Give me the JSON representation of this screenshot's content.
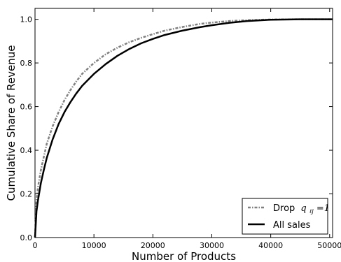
{
  "chart_data": {
    "type": "line",
    "xlabel": "Number of Products",
    "ylabel": "Cumulative Share of Revenue",
    "xlim": [
      0,
      50500
    ],
    "ylim": [
      0,
      1.05
    ],
    "xticks": [
      0,
      10000,
      20000,
      30000,
      40000,
      50000
    ],
    "xtick_labels": [
      "0",
      "10000",
      "20000",
      "30000",
      "40000",
      "50000"
    ],
    "yticks": [
      0.0,
      0.2,
      0.4,
      0.6,
      0.8,
      1.0
    ],
    "ytick_labels": [
      "0.0",
      "0.2",
      "0.4",
      "0.6",
      "0.8",
      "1.0"
    ],
    "grid": false,
    "legend_position": "lower-right",
    "series": [
      {
        "name": "Drop",
        "name_math": "q",
        "name_math_sub": "ℓj",
        "name_math_rest": "=1",
        "style": "dashdot",
        "color": "#808080",
        "x": [
          0,
          250,
          500,
          1000,
          1500,
          2000,
          3000,
          4000,
          5000,
          6000,
          7000,
          8000,
          10000,
          12000,
          14000,
          16000,
          18000,
          20000,
          22000,
          25000,
          28000,
          30000,
          33000,
          36000,
          40000,
          45000,
          50500
        ],
        "y": [
          0.0,
          0.17,
          0.23,
          0.31,
          0.37,
          0.43,
          0.51,
          0.575,
          0.63,
          0.675,
          0.715,
          0.75,
          0.8,
          0.84,
          0.87,
          0.895,
          0.915,
          0.932,
          0.948,
          0.965,
          0.979,
          0.985,
          0.992,
          0.996,
          0.999,
          1.0,
          1.0
        ]
      },
      {
        "name": "All sales",
        "style": "solid",
        "color": "#000000",
        "x": [
          0,
          250,
          500,
          1000,
          1500,
          2000,
          3000,
          4000,
          5000,
          6000,
          7000,
          8000,
          10000,
          12000,
          14000,
          16000,
          18000,
          20000,
          22000,
          25000,
          28000,
          30000,
          33000,
          36000,
          40000,
          45000,
          50500
        ],
        "y": [
          0.0,
          0.12,
          0.17,
          0.25,
          0.31,
          0.365,
          0.45,
          0.52,
          0.575,
          0.62,
          0.66,
          0.695,
          0.75,
          0.795,
          0.833,
          0.864,
          0.89,
          0.91,
          0.928,
          0.948,
          0.964,
          0.973,
          0.984,
          0.992,
          0.998,
          1.0,
          1.0
        ]
      }
    ]
  }
}
